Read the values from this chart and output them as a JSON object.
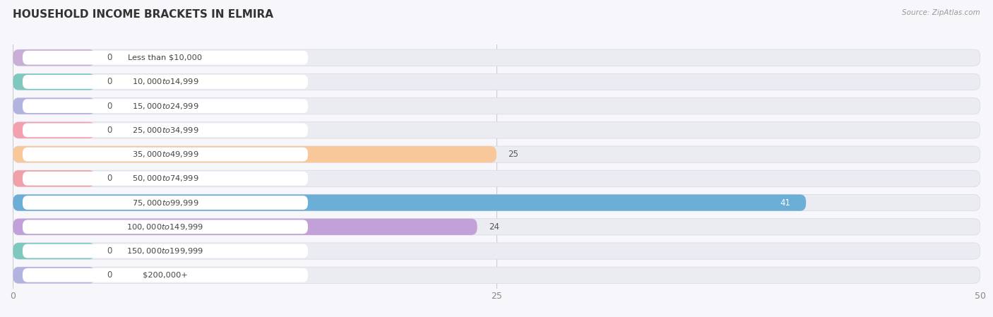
{
  "title": "HOUSEHOLD INCOME BRACKETS IN ELMIRA",
  "source": "Source: ZipAtlas.com",
  "categories": [
    "Less than $10,000",
    "$10,000 to $14,999",
    "$15,000 to $24,999",
    "$25,000 to $34,999",
    "$35,000 to $49,999",
    "$50,000 to $74,999",
    "$75,000 to $99,999",
    "$100,000 to $149,999",
    "$150,000 to $199,999",
    "$200,000+"
  ],
  "values": [
    0,
    0,
    0,
    0,
    25,
    0,
    41,
    24,
    0,
    0
  ],
  "bar_colors": [
    "#c9aed6",
    "#7ec8c0",
    "#b3b3e0",
    "#f4a0b0",
    "#f8c89a",
    "#f0a0a8",
    "#6baed6",
    "#c2a0d8",
    "#7ec8c0",
    "#b3b3e0"
  ],
  "xlim": [
    0,
    50
  ],
  "xticks": [
    0,
    25,
    50
  ],
  "bg_color": "#f7f7fb",
  "row_bg_color": "#ebebf2",
  "title_fontsize": 11,
  "value_label_41_color": "#ffffff",
  "value_label_other_color": "#555555"
}
